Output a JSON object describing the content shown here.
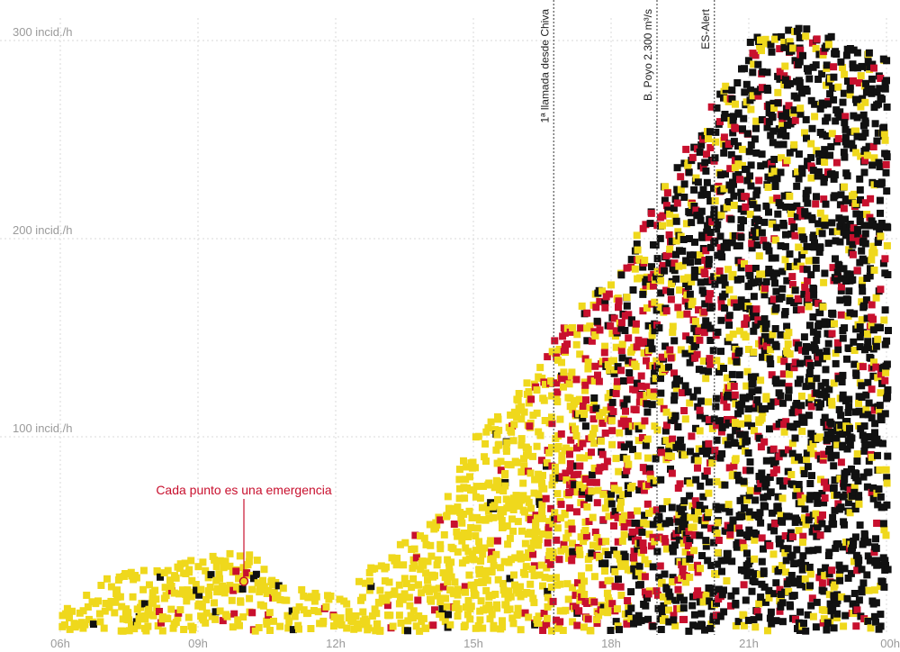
{
  "chart_data": {
    "type": "scatter",
    "title": "",
    "xlabel": "",
    "ylabel": "",
    "x_axis": {
      "range_hours": [
        5.0,
        24.0
      ],
      "ticks": [
        {
          "hour": 6,
          "label": "06h"
        },
        {
          "hour": 9,
          "label": "09h"
        },
        {
          "hour": 12,
          "label": "12h"
        },
        {
          "hour": 15,
          "label": "15h"
        },
        {
          "hour": 18,
          "label": "18h"
        },
        {
          "hour": 21,
          "label": "21h"
        },
        {
          "hour": 24,
          "label": "00h"
        }
      ]
    },
    "y_axis": {
      "range": [
        0,
        310
      ],
      "unit": "incid./h",
      "ticks": [
        {
          "value": 100,
          "label": "100 incid./h"
        },
        {
          "value": 200,
          "label": "200 incid./h"
        },
        {
          "value": 300,
          "label": "300 incid./h"
        }
      ]
    },
    "grid": true,
    "colors": {
      "yellow": "#efd81c",
      "red": "#c8102e",
      "black": "#111111",
      "grid": "#d9d9d9",
      "event_line": "#555555"
    },
    "events": [
      {
        "hour": 16.75,
        "label": "1ª llamada desde Chiva"
      },
      {
        "hour": 19.0,
        "label": "B. Poyo 2.300 m³/s"
      },
      {
        "hour": 20.25,
        "label": "ES-Alert"
      }
    ],
    "annotation": {
      "text": "Cada punto es una emergencia",
      "hour": 10.0,
      "value": 27
    },
    "rate_per_hour": [
      {
        "hour": 5.0,
        "value": 2
      },
      {
        "hour": 6.0,
        "value": 10
      },
      {
        "hour": 7.0,
        "value": 28
      },
      {
        "hour": 8.0,
        "value": 32
      },
      {
        "hour": 9.0,
        "value": 38
      },
      {
        "hour": 10.0,
        "value": 40
      },
      {
        "hour": 11.0,
        "value": 22
      },
      {
        "hour": 12.0,
        "value": 20
      },
      {
        "hour": 13.0,
        "value": 38
      },
      {
        "hour": 14.0,
        "value": 55
      },
      {
        "hour": 15.0,
        "value": 100
      },
      {
        "hour": 16.0,
        "value": 122
      },
      {
        "hour": 17.0,
        "value": 160
      },
      {
        "hour": 18.0,
        "value": 178
      },
      {
        "hour": 19.0,
        "value": 222
      },
      {
        "hour": 20.0,
        "value": 260
      },
      {
        "hour": 21.0,
        "value": 300
      },
      {
        "hour": 22.0,
        "value": 305
      },
      {
        "hour": 23.0,
        "value": 300
      },
      {
        "hour": 24.0,
        "value": 290
      }
    ],
    "color_shares_by_hour": [
      {
        "hour": 5,
        "yellow": 1.0,
        "red": 0.0,
        "black": 0.0
      },
      {
        "hour": 9,
        "yellow": 0.92,
        "red": 0.05,
        "black": 0.03
      },
      {
        "hour": 13,
        "yellow": 0.93,
        "red": 0.04,
        "black": 0.03
      },
      {
        "hour": 16,
        "yellow": 0.95,
        "red": 0.03,
        "black": 0.02
      },
      {
        "hour": 17,
        "yellow": 0.5,
        "red": 0.38,
        "black": 0.12
      },
      {
        "hour": 18,
        "yellow": 0.4,
        "red": 0.38,
        "black": 0.22
      },
      {
        "hour": 19,
        "yellow": 0.28,
        "red": 0.3,
        "black": 0.42
      },
      {
        "hour": 20,
        "yellow": 0.22,
        "red": 0.22,
        "black": 0.56
      },
      {
        "hour": 21,
        "yellow": 0.2,
        "red": 0.12,
        "black": 0.68
      },
      {
        "hour": 24,
        "yellow": 0.18,
        "red": 0.1,
        "black": 0.72
      }
    ]
  }
}
